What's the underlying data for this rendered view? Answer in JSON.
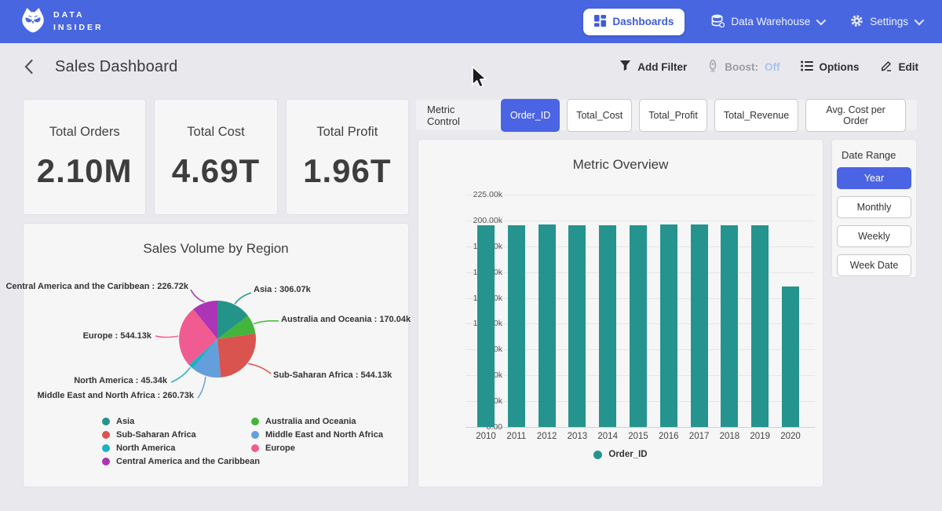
{
  "navbar": {
    "brand_line1": "DATA",
    "brand_line2": "INSIDER",
    "dashboards": "Dashboards",
    "data_warehouse": "Data Warehouse",
    "settings": "Settings"
  },
  "header": {
    "title": "Sales Dashboard",
    "add_filter": "Add Filter",
    "boost_label": "Boost:",
    "boost_value": "Off",
    "options": "Options",
    "edit": "Edit"
  },
  "kpis": [
    {
      "label": "Total Orders",
      "value": "2.10M"
    },
    {
      "label": "Total Cost",
      "value": "4.69T"
    },
    {
      "label": "Total Profit",
      "value": "1.96T"
    }
  ],
  "metric_control": {
    "label": "Metric Control",
    "options": [
      "Order_ID",
      "Total_Cost",
      "Total_Profit",
      "Total_Revenue",
      "Avg. Cost per Order"
    ],
    "active_index": 0
  },
  "date_range": {
    "label": "Date Range",
    "options": [
      "Year",
      "Monthly",
      "Weekly",
      "Week Date"
    ],
    "active_index": 0
  },
  "chart_data": [
    {
      "type": "pie",
      "title": "Sales Volume by Region",
      "unit": "k",
      "series": [
        {
          "name": "Asia",
          "value": 306.07,
          "label": "Asia : 306.07k",
          "color": "#24948b"
        },
        {
          "name": "Australia and Oceania",
          "value": 170.04,
          "label": "Australia and Oceania : 170.04k",
          "color": "#43b53c"
        },
        {
          "name": "Sub-Saharan Africa",
          "value": 544.13,
          "label": "Sub-Saharan Africa : 544.13k",
          "color": "#d9534f"
        },
        {
          "name": "Middle East and North Africa",
          "value": 260.73,
          "label": "Middle East and North Africa : 260.73k",
          "color": "#639fdd"
        },
        {
          "name": "North America",
          "value": 45.34,
          "label": "North America : 45.34k",
          "color": "#1cb0c4"
        },
        {
          "name": "Europe",
          "value": 544.13,
          "label": "Europe : 544.13k",
          "color": "#f05c92"
        },
        {
          "name": "Central America and the Caribbean",
          "value": 226.72,
          "label": "Central America and the Caribbean : 226.72k",
          "color": "#ab35b4"
        }
      ],
      "legend_position": "bottom"
    },
    {
      "type": "bar",
      "title": "Metric Overview",
      "categories": [
        "2010",
        "2011",
        "2012",
        "2013",
        "2014",
        "2015",
        "2016",
        "2017",
        "2018",
        "2019",
        "2020"
      ],
      "series": [
        {
          "name": "Order_ID",
          "color": "#25948f",
          "values": [
            195600,
            195500,
            196400,
            195700,
            195500,
            195600,
            196300,
            195800,
            195600,
            195700,
            135800
          ]
        }
      ],
      "ylim": [
        0,
        225000
      ],
      "ytick_step": 25000,
      "ytick_labels": [
        "0.00",
        "25.00k",
        "50.00k",
        "75.00k",
        "100.00k",
        "125.00k",
        "150.00k",
        "175.00k",
        "200.00k",
        "225.00k"
      ],
      "grid": true,
      "legend": "Order_ID",
      "legend_position": "bottom"
    }
  ],
  "colors": {
    "navbar": "#4866e0",
    "accent_blue": "#4b64e4",
    "page_bg": "#e8e8ed",
    "card_bg": "#f6f6f6",
    "bar_teal": "#25948f",
    "boost_off": "#a9c2f1"
  }
}
